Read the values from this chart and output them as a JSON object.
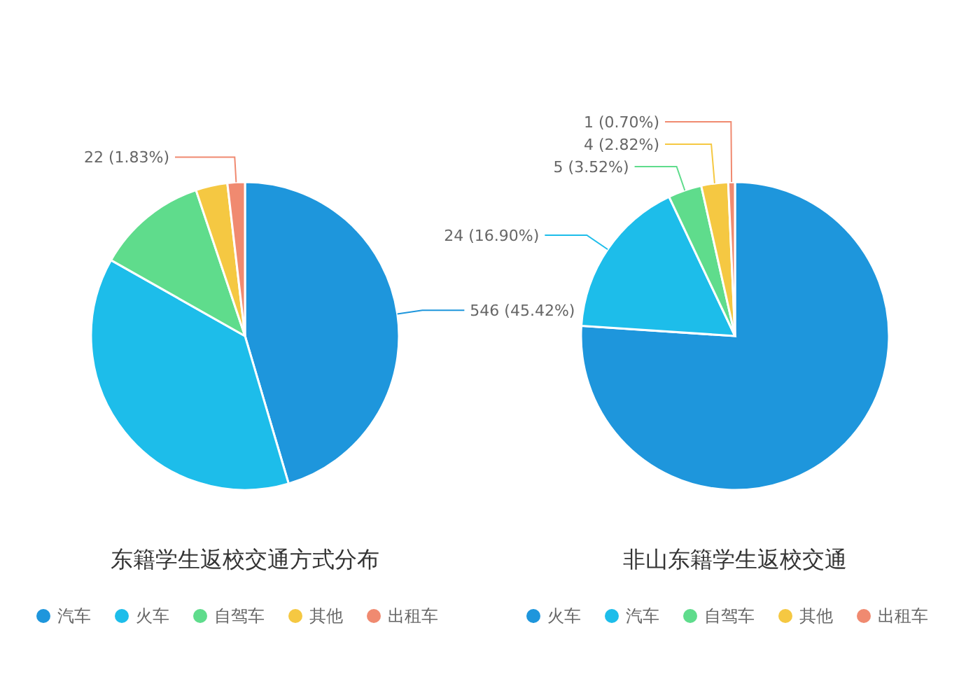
{
  "chart_data": [
    {
      "type": "pie",
      "title": "东籍学生返校交通方式分布",
      "categories": [
        "汽车",
        "火车",
        "自驾车",
        "其他",
        "出租车"
      ],
      "values": [
        546,
        454,
        140,
        40,
        22
      ],
      "colors": [
        "#1e96dc",
        "#1dbdea",
        "#5fdc8c",
        "#f5c842",
        "#f08a70"
      ],
      "value_labels": [
        "546 (45.42%)",
        null,
        null,
        null,
        "22 (1.83%)"
      ],
      "legend": "bottom"
    },
    {
      "type": "pie",
      "title": "非山东籍学生返校交通",
      "categories": [
        "火车",
        "汽车",
        "自驾车",
        "其他",
        "出租车"
      ],
      "values": [
        108,
        24,
        5,
        4,
        1
      ],
      "colors": [
        "#1e96dc",
        "#1dbdea",
        "#5fdc8c",
        "#f5c842",
        "#f08a70"
      ],
      "value_labels": [
        null,
        "24 (16.90%)",
        "5 (3.52%)",
        "4 (2.82%)",
        "1 (0.70%)"
      ],
      "legend": "bottom"
    }
  ]
}
